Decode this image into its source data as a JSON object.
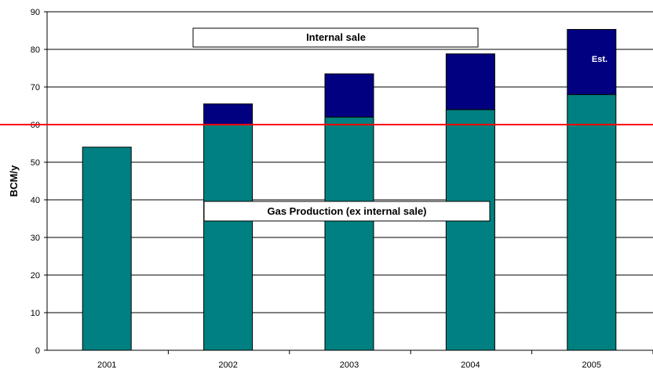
{
  "chart_data": {
    "type": "bar",
    "stacked": true,
    "categories": [
      "2001",
      "2002",
      "2003",
      "2004",
      "2005"
    ],
    "series": [
      {
        "name": "Gas Production (ex internal sale)",
        "values": [
          54,
          60,
          62,
          64,
          68
        ],
        "color": "#008080"
      },
      {
        "name": "Internal sale",
        "values": [
          0,
          5.5,
          11.5,
          14.8,
          17.3
        ],
        "color": "#000080"
      }
    ],
    "ylabel": "BCM/y",
    "xlabel": "",
    "ylim": [
      0,
      90
    ],
    "yticks": [
      "0",
      "10",
      "20",
      "30",
      "40",
      "50",
      "60",
      "70",
      "80",
      "90"
    ],
    "grid": true,
    "reference_line": {
      "value": 60,
      "color": "#ff0000"
    },
    "annotations": [
      {
        "text": "Internal sale"
      },
      {
        "text": "Gas Production (ex internal sale)"
      },
      {
        "text": "Est."
      }
    ]
  }
}
